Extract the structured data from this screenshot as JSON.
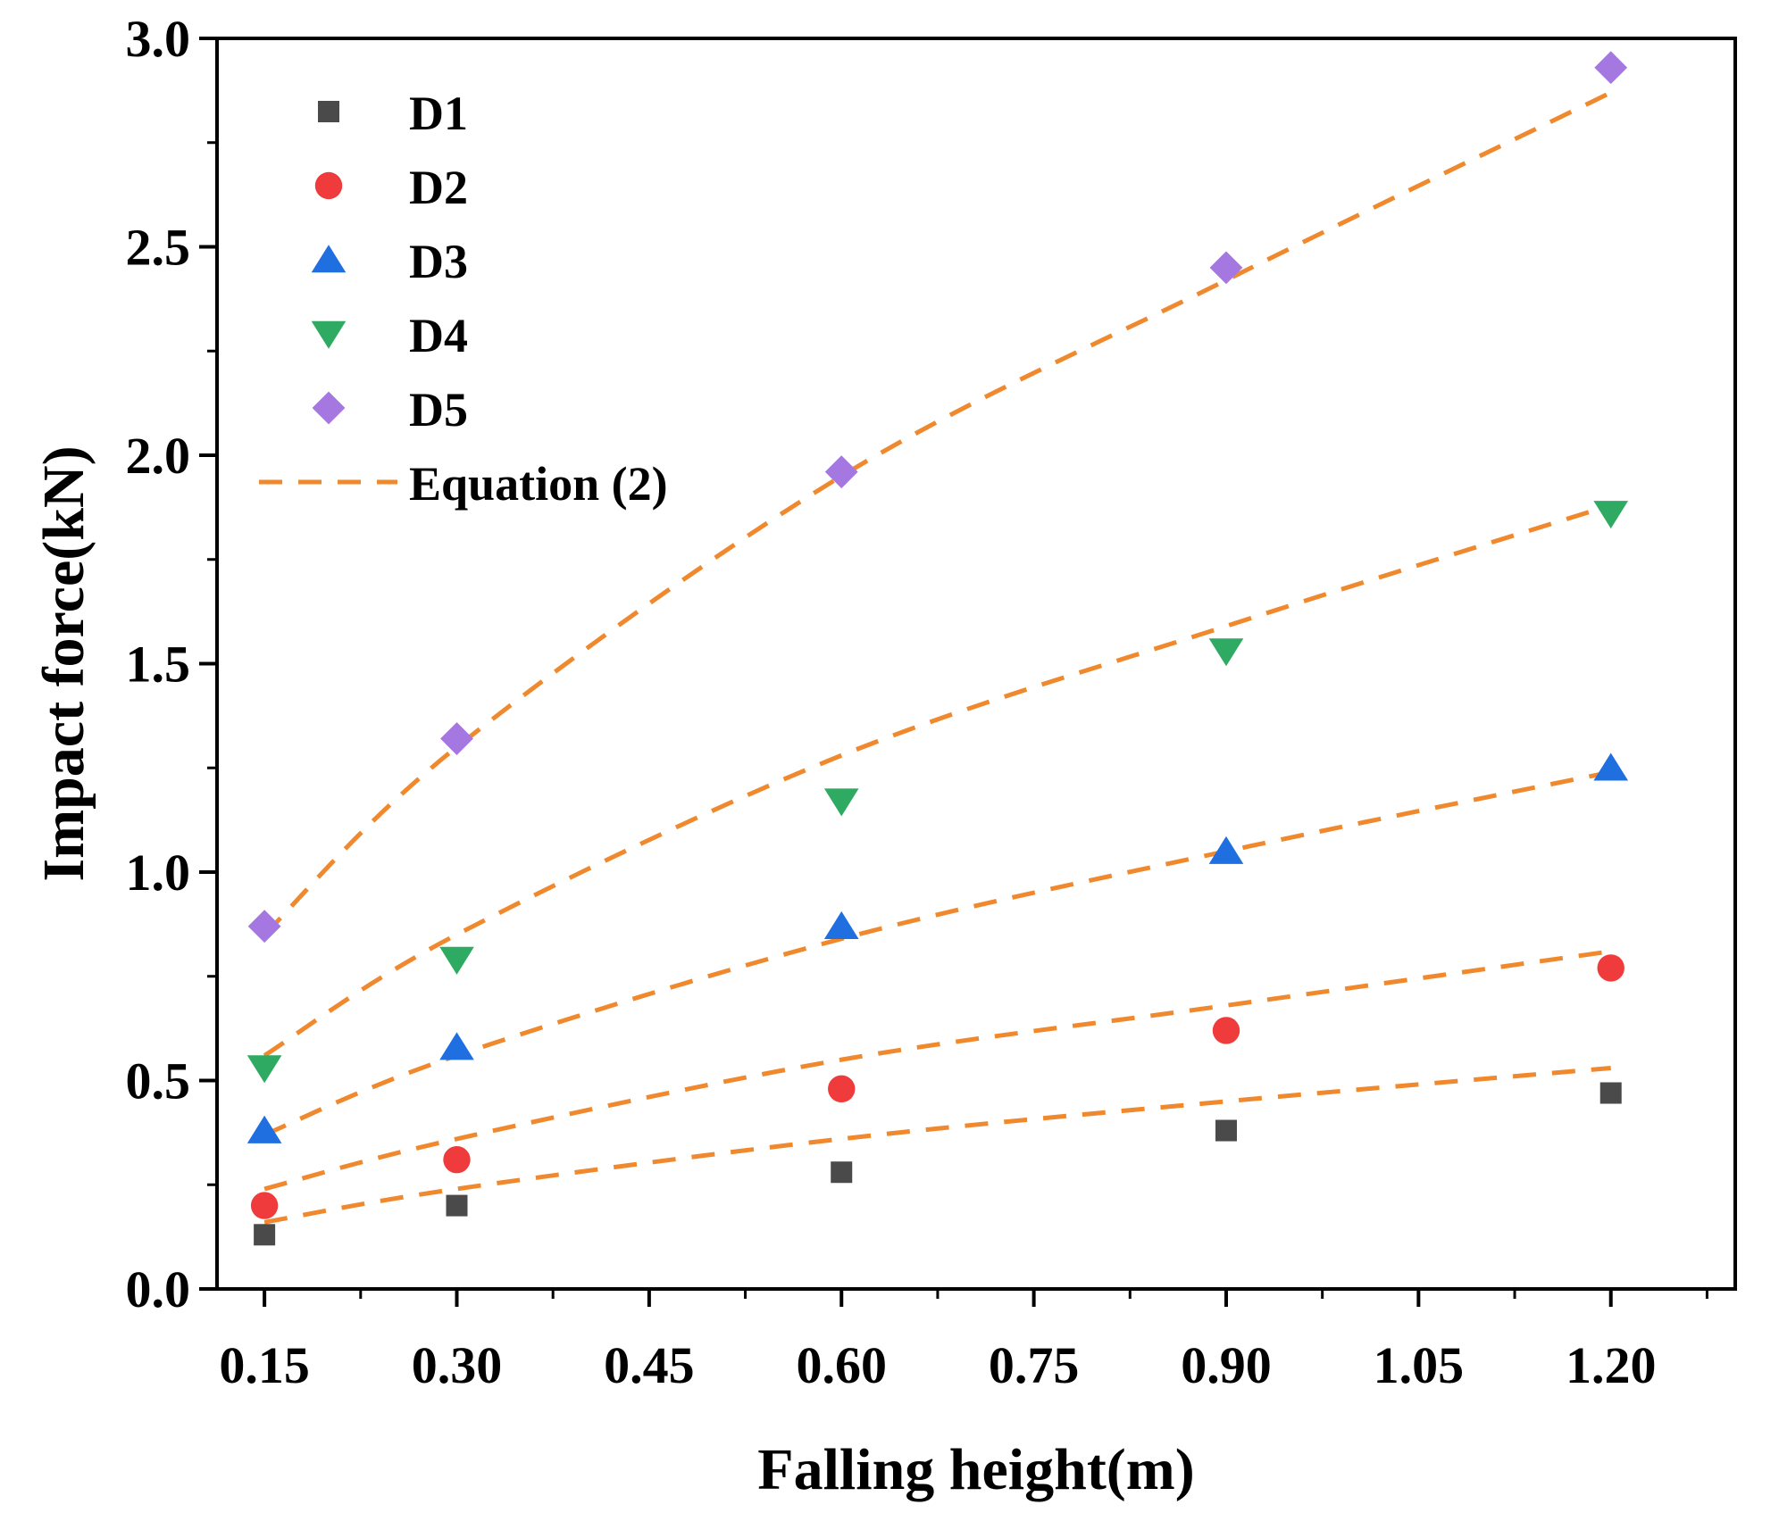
{
  "chart_data": {
    "type": "scatter",
    "title": "",
    "xlabel": "Falling height(m)",
    "ylabel": "Impact force(kN)",
    "xlim": [
      0.113,
      1.297
    ],
    "ylim": [
      0.0,
      3.0
    ],
    "x_ticks": [
      0.15,
      0.3,
      0.45,
      0.6,
      0.75,
      0.9,
      1.05,
      1.2
    ],
    "x_tick_labels": [
      "0.15",
      "0.30",
      "0.45",
      "0.60",
      "0.75",
      "0.90",
      "1.05",
      "1.20"
    ],
    "y_ticks": [
      0.0,
      0.5,
      1.0,
      1.5,
      2.0,
      2.5,
      3.0
    ],
    "y_tick_labels": [
      "0.0",
      "0.5",
      "1.0",
      "1.5",
      "2.0",
      "2.5",
      "3.0"
    ],
    "grid": false,
    "legend_position": "top-left",
    "x": [
      0.15,
      0.3,
      0.6,
      0.9,
      1.2
    ],
    "series": [
      {
        "name": "D1",
        "marker": "square",
        "color": "#4a4a4a",
        "values": [
          0.13,
          0.2,
          0.28,
          0.38,
          0.47
        ]
      },
      {
        "name": "D2",
        "marker": "circle",
        "color": "#ef3b3b",
        "values": [
          0.2,
          0.31,
          0.48,
          0.62,
          0.77
        ]
      },
      {
        "name": "D3",
        "marker": "triangle-up",
        "color": "#1f6fe0",
        "values": [
          0.38,
          0.58,
          0.87,
          1.05,
          1.25
        ]
      },
      {
        "name": "D4",
        "marker": "triangle-down",
        "color": "#2eaa62",
        "values": [
          0.53,
          0.79,
          1.17,
          1.53,
          1.86
        ]
      },
      {
        "name": "D5",
        "marker": "diamond",
        "color": "#a577e0",
        "values": [
          0.87,
          1.32,
          1.96,
          2.45,
          2.93
        ]
      }
    ],
    "fit_lines": {
      "name": "Equation (2)",
      "color": "#f0892e",
      "style": "dashed",
      "curves": [
        {
          "x": [
            0.15,
            0.3,
            0.6,
            0.9,
            1.2
          ],
          "y": [
            0.16,
            0.24,
            0.36,
            0.45,
            0.53
          ]
        },
        {
          "x": [
            0.15,
            0.3,
            0.6,
            0.9,
            1.2
          ],
          "y": [
            0.24,
            0.36,
            0.55,
            0.68,
            0.81
          ]
        },
        {
          "x": [
            0.15,
            0.3,
            0.6,
            0.9,
            1.2
          ],
          "y": [
            0.37,
            0.56,
            0.84,
            1.05,
            1.24
          ]
        },
        {
          "x": [
            0.15,
            0.3,
            0.6,
            0.9,
            1.2
          ],
          "y": [
            0.56,
            0.85,
            1.28,
            1.59,
            1.88
          ]
        },
        {
          "x": [
            0.15,
            0.3,
            0.6,
            0.9,
            1.2
          ],
          "y": [
            0.85,
            1.3,
            1.95,
            2.42,
            2.87
          ]
        }
      ]
    }
  }
}
